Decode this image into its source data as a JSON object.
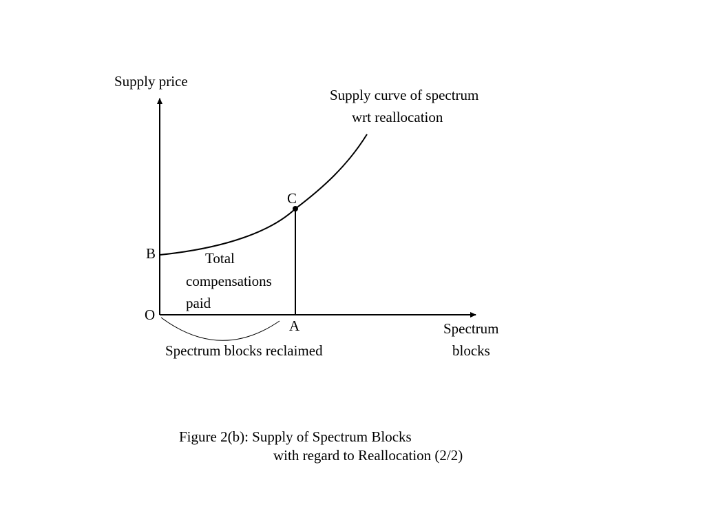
{
  "axes": {
    "y_label": "Supply price",
    "x_label": [
      "Spectrum",
      "blocks"
    ]
  },
  "curve": {
    "label": [
      "Supply curve of spectrum",
      "wrt reallocation"
    ]
  },
  "points": {
    "origin": "O",
    "b": "B",
    "c": "C",
    "a": "A"
  },
  "area_label": [
    "Total",
    "compensations",
    "paid"
  ],
  "brace_label": "Spectrum blocks reclaimed",
  "caption": [
    "Figure 2(b): Supply of Spectrum Blocks",
    "with regard to Reallocation (2/2)"
  ]
}
